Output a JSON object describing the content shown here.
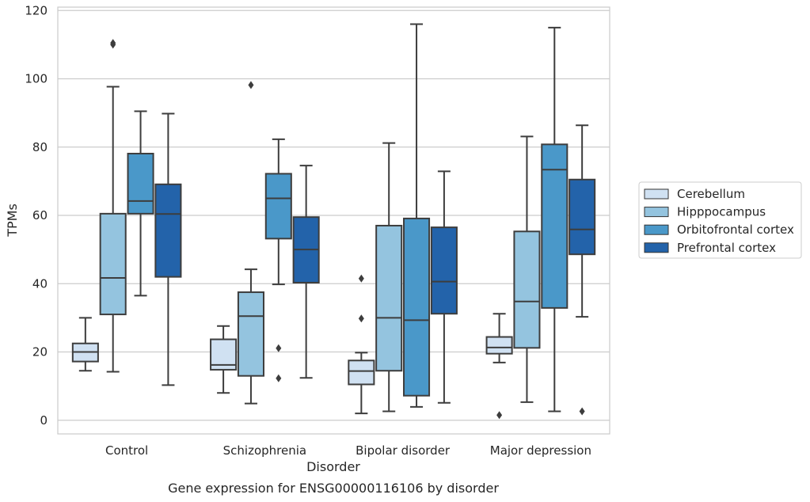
{
  "chart_data": {
    "type": "box",
    "xlabel": "Disorder",
    "ylabel": "TPMs",
    "caption": "Gene expression for ENSG00000116106 by disorder",
    "ylim": [
      -4,
      121
    ],
    "yticks": [
      "0",
      "20",
      "40",
      "60",
      "80",
      "100",
      "120"
    ],
    "grid": "horizontal",
    "legend_position": "right",
    "categories": [
      "Control",
      "Schizophrenia",
      "Bipolar disorder",
      "Major depression"
    ],
    "series": [
      {
        "name": "Cerebellum",
        "color": "#d0e1f2",
        "boxes": [
          {
            "whislo": 14.5,
            "q1": 17.2,
            "med": 20.0,
            "q3": 22.5,
            "whishi": 30.0,
            "fliers": []
          },
          {
            "whislo": 8.0,
            "q1": 14.8,
            "med": 16.2,
            "q3": 23.7,
            "whishi": 27.6,
            "fliers": []
          },
          {
            "whislo": 2.0,
            "q1": 10.5,
            "med": 14.4,
            "q3": 17.5,
            "whishi": 19.8,
            "fliers": [
              41.5,
              29.8
            ]
          },
          {
            "whislo": 16.9,
            "q1": 19.5,
            "med": 21.3,
            "q3": 24.4,
            "whishi": 31.2,
            "fliers": [
              1.5
            ]
          }
        ]
      },
      {
        "name": "Hipppocampus",
        "color": "#94c4df",
        "boxes": [
          {
            "whislo": 14.2,
            "q1": 31.0,
            "med": 41.7,
            "q3": 60.5,
            "whishi": 97.7,
            "fliers": [
              110.0,
              110.5
            ]
          },
          {
            "whislo": 4.9,
            "q1": 13.0,
            "med": 30.5,
            "q3": 37.5,
            "whishi": 44.2,
            "fliers": [
              98.2
            ]
          },
          {
            "whislo": 2.6,
            "q1": 14.5,
            "med": 30.0,
            "q3": 57.0,
            "whishi": 81.2,
            "fliers": []
          },
          {
            "whislo": 5.3,
            "q1": 21.2,
            "med": 34.8,
            "q3": 55.3,
            "whishi": 83.1,
            "fliers": []
          }
        ]
      },
      {
        "name": "Orbitofrontal cortex",
        "color": "#4a98c9",
        "boxes": [
          {
            "whislo": 36.5,
            "q1": 60.5,
            "med": 64.2,
            "q3": 78.1,
            "whishi": 90.5,
            "fliers": []
          },
          {
            "whislo": 39.8,
            "q1": 53.2,
            "med": 65.0,
            "q3": 72.2,
            "whishi": 82.3,
            "fliers": [
              21.1,
              12.3
            ]
          },
          {
            "whislo": 3.9,
            "q1": 7.2,
            "med": 29.3,
            "q3": 59.1,
            "whishi": 116.0,
            "fliers": []
          },
          {
            "whislo": 2.6,
            "q1": 32.9,
            "med": 73.4,
            "q3": 80.8,
            "whishi": 115.0,
            "fliers": []
          }
        ]
      },
      {
        "name": "Prefrontal cortex",
        "color": "#2363aa",
        "boxes": [
          {
            "whislo": 10.3,
            "q1": 42.0,
            "med": 60.4,
            "q3": 69.1,
            "whishi": 89.8,
            "fliers": []
          },
          {
            "whislo": 12.4,
            "q1": 40.3,
            "med": 50.0,
            "q3": 59.5,
            "whishi": 74.6,
            "fliers": []
          },
          {
            "whislo": 5.1,
            "q1": 31.2,
            "med": 40.6,
            "q3": 56.5,
            "whishi": 72.9,
            "fliers": []
          },
          {
            "whislo": 30.3,
            "q1": 48.6,
            "med": 55.9,
            "q3": 70.5,
            "whishi": 86.4,
            "fliers": [
              2.6
            ]
          }
        ]
      }
    ]
  }
}
